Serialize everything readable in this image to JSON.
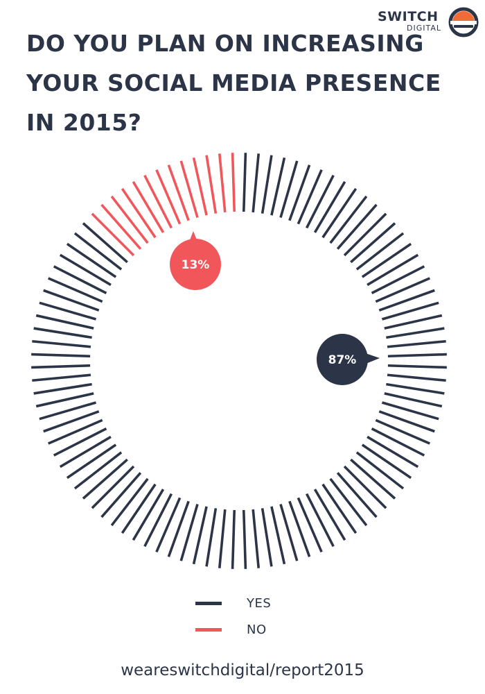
{
  "logo": {
    "top": "SWITCH",
    "bottom": "DIGITAL"
  },
  "title": "DO YOU PLAN ON INCREASING YOUR SOCIAL MEDIA PRESENCE IN 2015?",
  "colors": {
    "yes": "#2c3547",
    "no": "#f0565a",
    "logo_accent": "#f26a3a"
  },
  "chart_data": {
    "type": "pie",
    "title": "DO YOU PLAN ON INCREASING YOUR SOCIAL MEDIA PRESENCE IN 2015?",
    "series": [
      {
        "name": "YES",
        "value": 87,
        "label": "87%",
        "color": "#2c3547"
      },
      {
        "name": "NO",
        "value": 13,
        "label": "13%",
        "color": "#f0565a"
      }
    ],
    "legend": "bottom-center"
  },
  "footer": "weareswitchdigital/report2015"
}
